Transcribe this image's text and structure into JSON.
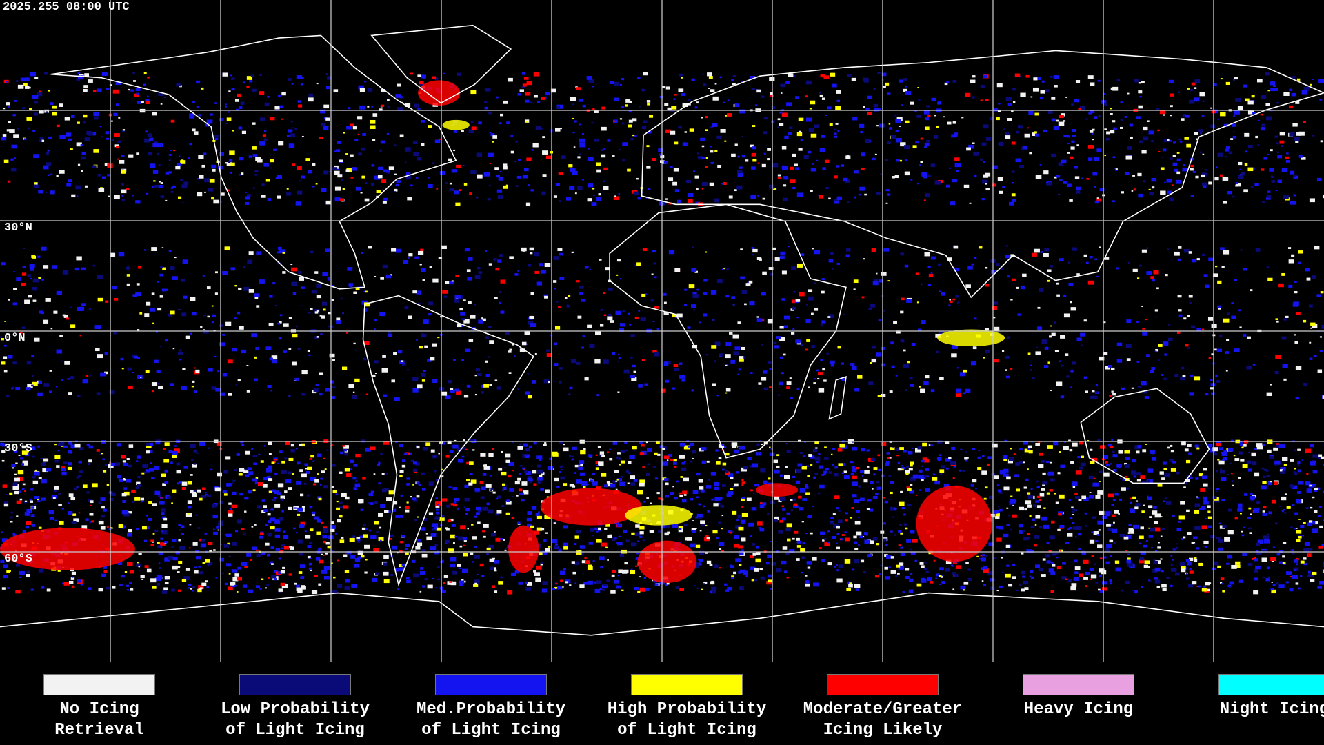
{
  "header": {
    "timestamp": "2025.255 08:00 UTC"
  },
  "map": {
    "latitude_labels": [
      "30°N",
      "0°N",
      "30°S",
      "60°S"
    ]
  },
  "legend": [
    {
      "label_lines": [
        "No Icing",
        "Retrieval"
      ],
      "color": "#f2f2f2"
    },
    {
      "label_lines": [
        "Low Probability",
        "of Light Icing"
      ],
      "color": "#0a0a78"
    },
    {
      "label_lines": [
        "Med.Probability",
        "of Light Icing"
      ],
      "color": "#1414f0"
    },
    {
      "label_lines": [
        "High Probability",
        "of Light Icing"
      ],
      "color": "#ffff00"
    },
    {
      "label_lines": [
        "Moderate/Greater",
        "Icing Likely"
      ],
      "color": "#ff0000"
    },
    {
      "label_lines": [
        "Heavy Icing"
      ],
      "color": "#e8a0e0"
    },
    {
      "label_lines": [
        "Night Icing"
      ],
      "color": "#00ffff"
    }
  ]
}
